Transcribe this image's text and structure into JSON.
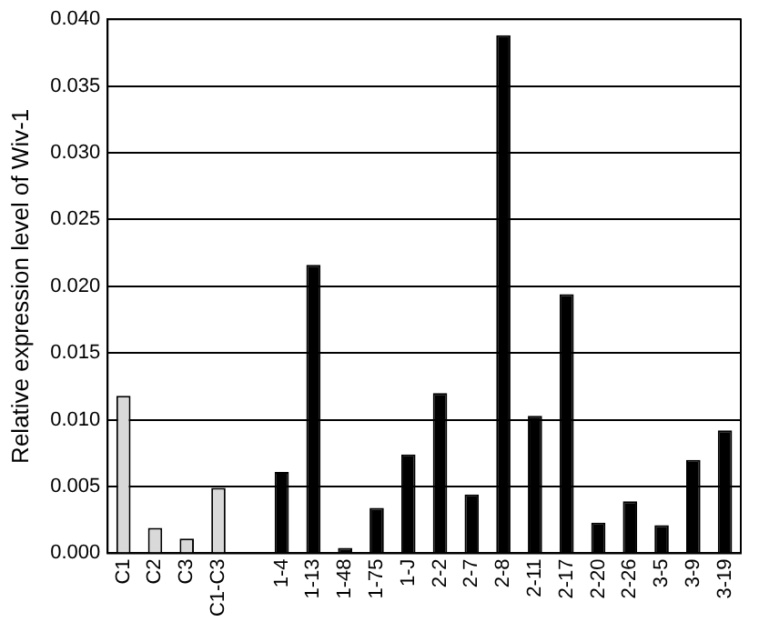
{
  "chart_data": {
    "type": "bar",
    "ylabel": "Relative expression level of Wiv-1",
    "categories": [
      "C1",
      "C2",
      "C3",
      "C1-C3",
      null,
      "1-4",
      "1-13",
      "1-48",
      "1-75",
      "1-J",
      "2-2",
      "2-7",
      "2-8",
      "2-11",
      "2-17",
      "2-20",
      "2-26",
      "3-5",
      "3-9",
      "3-19"
    ],
    "values": [
      0.0118,
      0.0019,
      0.0011,
      0.0049,
      null,
      0.0061,
      0.0216,
      0.0004,
      0.0034,
      0.0074,
      0.012,
      0.0044,
      0.0388,
      0.0103,
      0.0194,
      0.0023,
      0.0039,
      0.0021,
      0.007,
      0.0092
    ],
    "colors": [
      "#d9d9d9",
      "#d9d9d9",
      "#d9d9d9",
      "#d9d9d9",
      null,
      "#000000",
      "#000000",
      "#000000",
      "#000000",
      "#000000",
      "#000000",
      "#000000",
      "#000000",
      "#000000",
      "#000000",
      "#000000",
      "#000000",
      "#000000",
      "#000000",
      "#000000"
    ],
    "ylim": [
      0,
      0.04
    ],
    "yticks": [
      {
        "value": 0,
        "label": "0.000"
      },
      {
        "value": 0.005,
        "label": "0.005"
      },
      {
        "value": 0.01,
        "label": "0.010"
      },
      {
        "value": 0.015,
        "label": "0.015"
      },
      {
        "value": 0.02,
        "label": "0.020"
      },
      {
        "value": 0.025,
        "label": "0.025"
      },
      {
        "value": 0.03,
        "label": "0.030"
      },
      {
        "value": 0.035,
        "label": "0.035"
      },
      {
        "value": 0.04,
        "label": "0.040"
      }
    ],
    "grid": "y",
    "legend": false
  }
}
